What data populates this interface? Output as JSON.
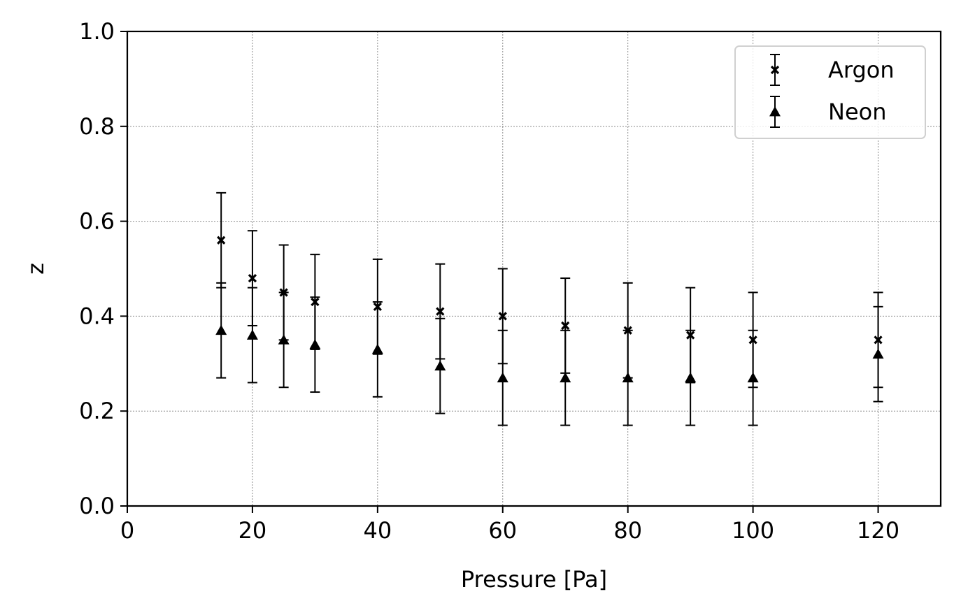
{
  "chart_data": {
    "type": "scatter",
    "title": "",
    "xlabel": "Pressure [Pa]",
    "ylabel": "z",
    "xlim": [
      0,
      130
    ],
    "ylim": [
      0.0,
      1.0
    ],
    "xticks": [
      0,
      20,
      40,
      60,
      80,
      100,
      120
    ],
    "xtick_labels": [
      "0",
      "20",
      "40",
      "60",
      "80",
      "100",
      "120"
    ],
    "yticks": [
      0.0,
      0.2,
      0.4,
      0.6,
      0.8,
      1.0
    ],
    "ytick_labels": [
      "0.0",
      "0.2",
      "0.4",
      "0.6",
      "0.8",
      "1.0"
    ],
    "grid": true,
    "legend_position": "top-right",
    "series": [
      {
        "name": "Argon",
        "marker": "x",
        "color": "#000000",
        "x": [
          15,
          20,
          25,
          30,
          40,
          50,
          60,
          70,
          80,
          90,
          100,
          120
        ],
        "y": [
          0.56,
          0.48,
          0.45,
          0.43,
          0.42,
          0.41,
          0.4,
          0.38,
          0.37,
          0.36,
          0.35,
          0.35
        ],
        "yerr": [
          0.1,
          0.1,
          0.1,
          0.1,
          0.1,
          0.1,
          0.1,
          0.1,
          0.1,
          0.1,
          0.1,
          0.1
        ]
      },
      {
        "name": "Neon",
        "marker": "triangle",
        "color": "#000000",
        "x": [
          15,
          20,
          25,
          30,
          40,
          50,
          60,
          70,
          80,
          90,
          100,
          120
        ],
        "y": [
          0.37,
          0.36,
          0.35,
          0.34,
          0.33,
          0.295,
          0.27,
          0.27,
          0.27,
          0.27,
          0.27,
          0.32
        ],
        "yerr": [
          0.1,
          0.1,
          0.1,
          0.1,
          0.1,
          0.1,
          0.1,
          0.1,
          0.1,
          0.1,
          0.1,
          0.1
        ]
      }
    ]
  }
}
